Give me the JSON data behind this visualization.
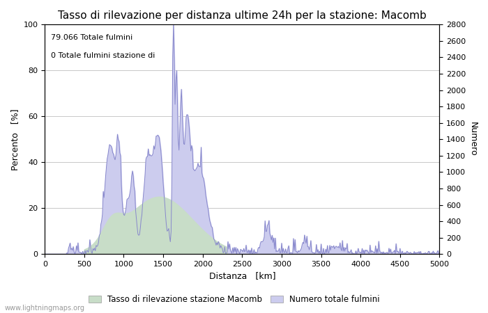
{
  "title": "Tasso di rilevazione per distanza ultime 24h per la stazione: Macomb",
  "xlabel": "Distanza   [km]",
  "ylabel_left": "Percento   [%]",
  "ylabel_right": "Numero",
  "annotation_line1": "79.066 Totale fulmini",
  "annotation_line2": "0 Totale fulmini stazione di",
  "xlim": [
    0,
    5000
  ],
  "ylim_left": [
    0,
    100
  ],
  "ylim_right": [
    0,
    2800
  ],
  "xticks": [
    0,
    500,
    1000,
    1500,
    2000,
    2500,
    3000,
    3500,
    4000,
    4500,
    5000
  ],
  "yticks_left": [
    0,
    20,
    40,
    60,
    80,
    100
  ],
  "yticks_right": [
    0,
    200,
    400,
    600,
    800,
    1000,
    1200,
    1400,
    1600,
    1800,
    2000,
    2200,
    2400,
    2600,
    2800
  ],
  "background_color": "#ffffff",
  "plot_bg_color": "#ffffff",
  "grid_color": "#c8c8c8",
  "line_color": "#8888cc",
  "fill_blue_color": "#ccccee",
  "fill_green_color": "#c8ddc8",
  "legend_label_green": "Tasso di rilevazione stazione Macomb",
  "legend_label_blue": "Numero totale fulmini",
  "watermark": "www.lightningmaps.org",
  "title_fontsize": 11,
  "label_fontsize": 9,
  "tick_fontsize": 8,
  "annotation_fontsize": 8,
  "watermark_fontsize": 7
}
